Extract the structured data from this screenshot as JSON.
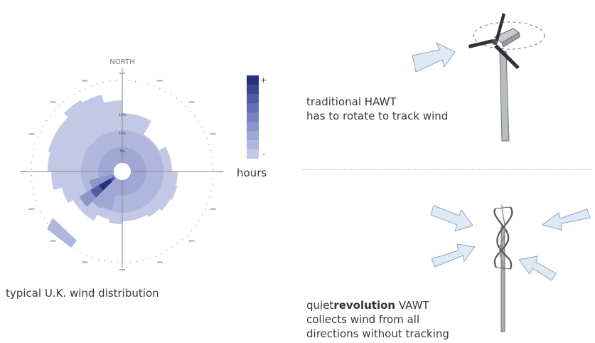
{
  "rose": {
    "north_label": "NORTH",
    "caption": "typical U.K. wind distribution",
    "ring_labels": [
      "5%",
      "10%",
      "15%"
    ]
  },
  "legend": {
    "title": "hours",
    "max_symbol": "+",
    "min_symbol": "-",
    "colors": [
      "#2a2f7a",
      "#3b4692",
      "#4f5ca4",
      "#6470b2",
      "#7883bf",
      "#8b95c9",
      "#9ea7d3",
      "#b0b7dc",
      "#c2c8e5"
    ]
  },
  "hawt": {
    "caption_line1": "traditional HAWT",
    "caption_line2": "has to rotate to track wind"
  },
  "vawt": {
    "brand_prefix": "quiet",
    "brand_bold": "revolution",
    "brand_suffix": " VAWT",
    "caption_line2": "collects wind from all",
    "caption_line3": "directions without tracking"
  }
}
